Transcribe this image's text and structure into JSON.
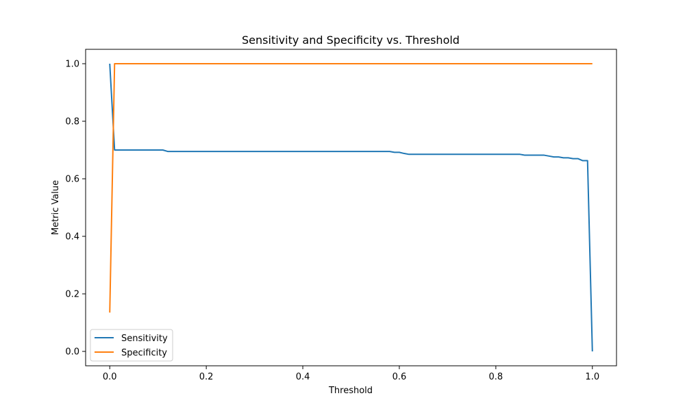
{
  "chart_data": {
    "type": "line",
    "title": "Sensitivity and Specificity vs. Threshold",
    "xlabel": "Threshold",
    "ylabel": "Metric Value",
    "xlim": [
      -0.05,
      1.05
    ],
    "ylim": [
      -0.05,
      1.05
    ],
    "xticks": [
      0.0,
      0.2,
      0.4,
      0.6,
      0.8,
      1.0
    ],
    "xtick_labels": [
      "0.0",
      "0.2",
      "0.4",
      "0.6",
      "0.8",
      "1.0"
    ],
    "yticks": [
      0.0,
      0.2,
      0.4,
      0.6,
      0.8,
      1.0
    ],
    "ytick_labels": [
      "0.0",
      "0.2",
      "0.4",
      "0.6",
      "0.8",
      "1.0"
    ],
    "grid": false,
    "legend_position": "lower-left",
    "series": [
      {
        "name": "Sensitivity",
        "color": "#1f77b4",
        "x": [
          0.0,
          0.01,
          0.02,
          0.05,
          0.08,
          0.11,
          0.12,
          0.2,
          0.3,
          0.4,
          0.5,
          0.58,
          0.59,
          0.6,
          0.61,
          0.62,
          0.7,
          0.8,
          0.85,
          0.86,
          0.87,
          0.88,
          0.9,
          0.91,
          0.92,
          0.93,
          0.94,
          0.95,
          0.96,
          0.97,
          0.98,
          0.99,
          1.0
        ],
        "y": [
          1.0,
          0.7,
          0.7,
          0.7,
          0.7,
          0.7,
          0.695,
          0.695,
          0.695,
          0.695,
          0.695,
          0.695,
          0.692,
          0.692,
          0.688,
          0.685,
          0.685,
          0.685,
          0.685,
          0.682,
          0.682,
          0.682,
          0.682,
          0.679,
          0.676,
          0.676,
          0.673,
          0.673,
          0.67,
          0.67,
          0.663,
          0.663,
          0.0
        ]
      },
      {
        "name": "Specificity",
        "color": "#ff7f0e",
        "x": [
          0.0,
          0.01,
          0.02,
          0.05,
          0.1,
          0.2,
          0.3,
          0.4,
          0.5,
          0.6,
          0.7,
          0.8,
          0.9,
          1.0
        ],
        "y": [
          0.135,
          1.0,
          1.0,
          1.0,
          1.0,
          1.0,
          1.0,
          1.0,
          1.0,
          1.0,
          1.0,
          1.0,
          1.0,
          1.0
        ]
      }
    ]
  }
}
